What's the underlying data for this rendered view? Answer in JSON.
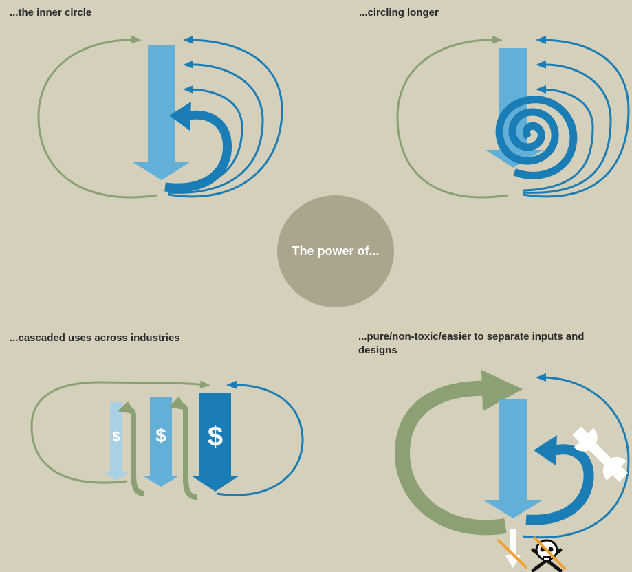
{
  "quadrants": {
    "inner_circle": {
      "label": "...the inner circle"
    },
    "circling_longer": {
      "label": "...circling longer"
    },
    "cascaded_uses": {
      "label": "...cascaded uses across industries",
      "currency_symbols": [
        "$",
        "$",
        "$"
      ]
    },
    "pure_inputs": {
      "label": "...pure/non-toxic/easier to separate inputs and designs"
    }
  },
  "center": {
    "text": "The power of..."
  },
  "colors": {
    "background": "#d4d0bb",
    "green": "#8ba173",
    "dark_blue": "#1a7db5",
    "light_blue": "#62b0d8",
    "pale_blue": "#a9d1e6",
    "center_circle": "#aaa58d",
    "orange": "#f2a02b"
  },
  "icons": [
    "wrench-icon",
    "skull-crossbones-icon"
  ]
}
